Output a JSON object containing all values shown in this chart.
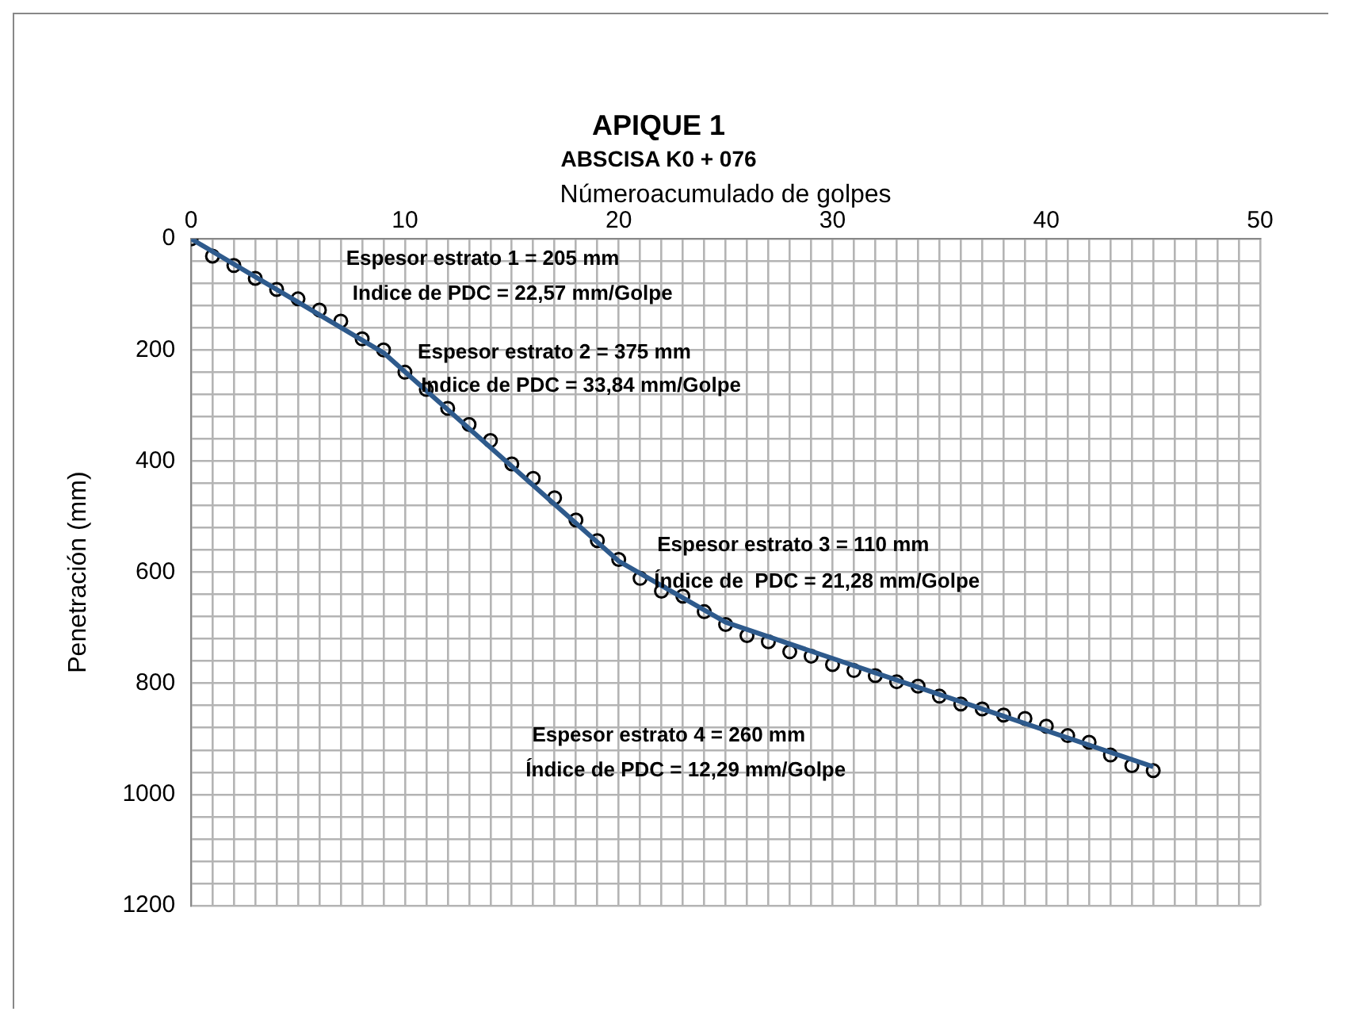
{
  "chart_data": {
    "type": "scatter",
    "title": "APIQUE 1",
    "subtitle": "ABSCISA K0 + 076",
    "xlabel": "Númeroacumulado de golpes",
    "ylabel": "Penetración (mm)",
    "x": [
      0,
      1,
      2,
      3,
      4,
      5,
      6,
      7,
      8,
      9,
      10,
      11,
      12,
      13,
      14,
      15,
      16,
      17,
      18,
      19,
      20,
      21,
      22,
      23,
      24,
      25,
      26,
      27,
      28,
      29,
      30,
      31,
      32,
      33,
      34,
      35,
      36,
      37,
      38,
      39,
      40,
      41,
      42,
      43,
      44,
      45
    ],
    "series": [
      {
        "color": "#000000",
        "marker": "circle",
        "values": [
          0,
          31,
          48,
          71,
          91,
          108,
          128,
          148,
          180,
          200,
          240,
          271,
          305,
          334,
          363,
          405,
          431,
          466,
          506,
          543,
          577,
          611,
          634,
          643,
          671,
          694,
          714,
          725,
          743,
          751,
          766,
          777,
          786,
          797,
          805,
          823,
          837,
          846,
          857,
          863,
          877,
          894,
          906,
          929,
          948,
          957
        ]
      },
      {
        "type": "line",
        "color": "#2e5a8c",
        "marker": "none",
        "x": [
          0,
          9,
          20,
          25,
          45
        ],
        "values": [
          0,
          205,
          580,
          690,
          950
        ]
      }
    ],
    "xlim": [
      0,
      50
    ],
    "xticks": [
      0,
      {
        "value": 1,
        "label": null
      },
      {
        "value": 2,
        "label": null
      },
      {
        "value": 3,
        "label": null
      },
      {
        "value": 4,
        "label": null
      },
      {
        "value": 5,
        "label": null
      },
      {
        "value": 6,
        "label": null
      },
      {
        "value": 7,
        "label": null
      },
      {
        "value": 8,
        "label": null
      },
      {
        "value": 9,
        "label": null
      },
      10,
      {
        "value": 11,
        "label": null
      },
      {
        "value": 12,
        "label": null
      },
      {
        "value": 13,
        "label": null
      },
      {
        "value": 14,
        "label": null
      },
      {
        "value": 15,
        "label": null
      },
      {
        "value": 16,
        "label": null
      },
      {
        "value": 17,
        "label": null
      },
      {
        "value": 18,
        "label": null
      },
      {
        "value": 19,
        "label": null
      },
      20,
      {
        "value": 21,
        "label": null
      },
      {
        "value": 22,
        "label": null
      },
      {
        "value": 23,
        "label": null
      },
      {
        "value": 24,
        "label": null
      },
      {
        "value": 25,
        "label": null
      },
      {
        "value": 26,
        "label": null
      },
      {
        "value": 27,
        "label": null
      },
      {
        "value": 28,
        "label": null
      },
      {
        "value": 29,
        "label": null
      },
      30,
      {
        "value": 31,
        "label": null
      },
      {
        "value": 32,
        "label": null
      },
      {
        "value": 33,
        "label": null
      },
      {
        "value": 34,
        "label": null
      },
      {
        "value": 35,
        "label": null
      },
      {
        "value": 36,
        "label": null
      },
      {
        "value": 37,
        "label": null
      },
      {
        "value": 38,
        "label": null
      },
      {
        "value": 39,
        "label": null
      },
      40,
      {
        "value": 41,
        "label": null
      },
      {
        "value": 42,
        "label": null
      },
      {
        "value": 43,
        "label": null
      },
      {
        "value": 44,
        "label": null
      },
      {
        "value": 45,
        "label": null
      },
      {
        "value": 46,
        "label": null
      },
      {
        "value": 47,
        "label": null
      },
      {
        "value": 48,
        "label": null
      },
      {
        "value": 49,
        "label": null
      },
      50
    ],
    "ylim": [
      1200,
      0
    ],
    "yticks": [
      0,
      {
        "value": 40,
        "label": null
      },
      {
        "value": 80,
        "label": null
      },
      {
        "value": 120,
        "label": null
      },
      {
        "value": 160,
        "label": null
      },
      200,
      {
        "value": 240,
        "label": null
      },
      {
        "value": 280,
        "label": null
      },
      {
        "value": 320,
        "label": null
      },
      {
        "value": 360,
        "label": null
      },
      400,
      {
        "value": 440,
        "label": null
      },
      {
        "value": 480,
        "label": null
      },
      {
        "value": 520,
        "label": null
      },
      {
        "value": 560,
        "label": null
      },
      600,
      {
        "value": 640,
        "label": null
      },
      {
        "value": 680,
        "label": null
      },
      {
        "value": 720,
        "label": null
      },
      {
        "value": 760,
        "label": null
      },
      800,
      {
        "value": 840,
        "label": null
      },
      {
        "value": 880,
        "label": null
      },
      {
        "value": 920,
        "label": null
      },
      {
        "value": 960,
        "label": null
      },
      1000,
      {
        "value": 1040,
        "label": null
      },
      {
        "value": 1080,
        "label": null
      },
      {
        "value": 1120,
        "label": null
      },
      {
        "value": 1160,
        "label": null
      },
      1200
    ],
    "grid": true,
    "legend": false,
    "annotations": [
      "Espesor estrato 1 = 205 mm",
      "Indice de PDC = 22,57 mm/Golpe",
      "Espesor estrato 2 = 375 mm",
      "Indice de PDC = 33,84 mm/Golpe",
      "Espesor estrato 3 = 110 mm",
      "Índice de  PDC = 21,28 mm/Golpe",
      "Espesor estrato 4 = 260 mm",
      "Índice de PDC = 12,29 mm/Golpe"
    ]
  }
}
